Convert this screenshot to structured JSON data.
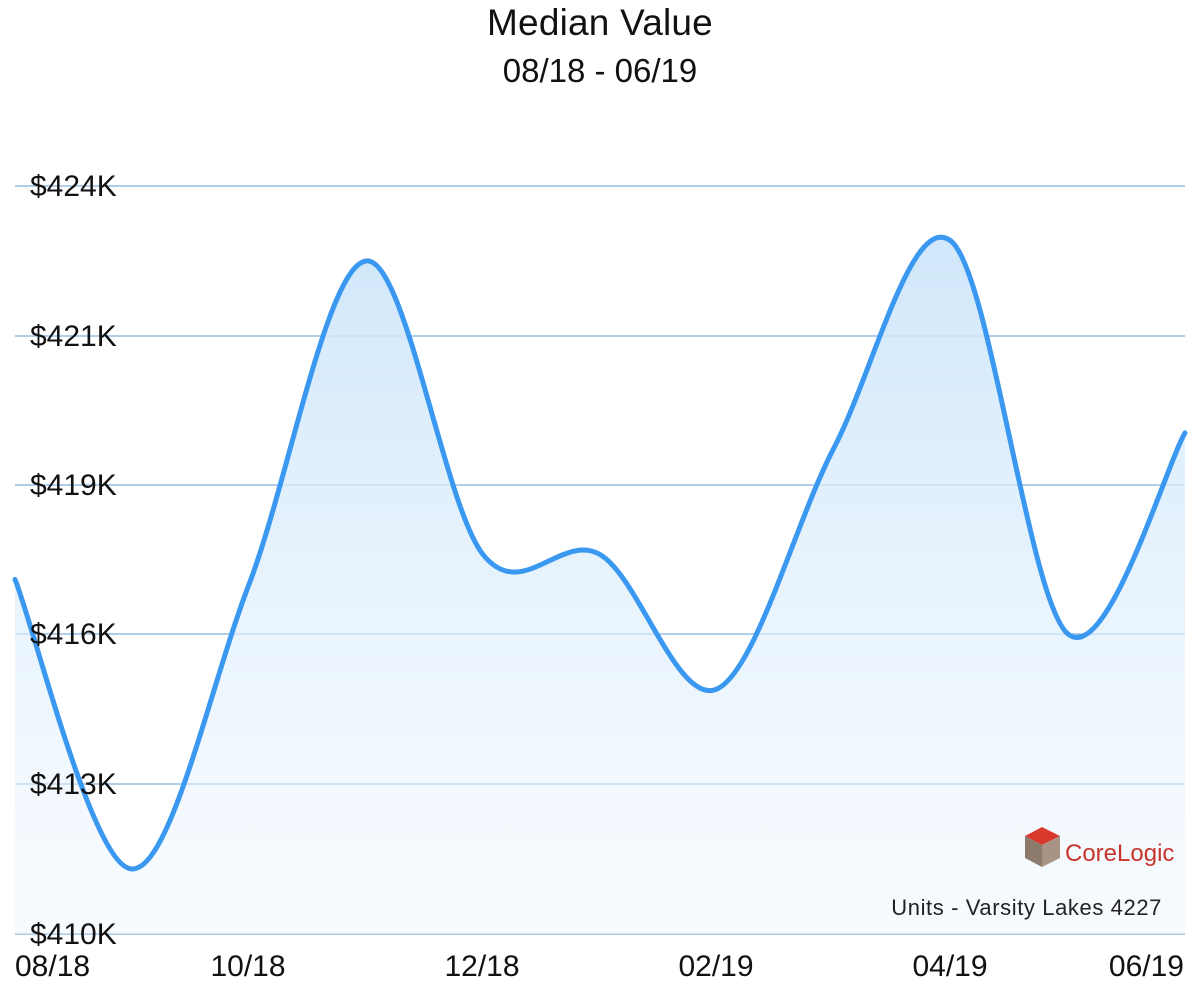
{
  "title": "Median Value",
  "subtitle": "08/18 - 06/19",
  "chart_data": {
    "type": "area",
    "title": "Median Value",
    "subtitle": "08/18 - 06/19",
    "xlabel": "",
    "ylabel": "",
    "x_ticks": [
      "08/18",
      "10/18",
      "12/18",
      "02/19",
      "04/19",
      "06/19"
    ],
    "y_ticks": [
      "$410K",
      "$413K",
      "$416K",
      "$419K",
      "$421K",
      "$424K"
    ],
    "y_tick_values": [
      410,
      413,
      416,
      419,
      421,
      424
    ],
    "ylim": [
      410,
      424
    ],
    "series": [
      {
        "name": "Median Value",
        "points": [
          {
            "x": 0.0,
            "y": 417.1
          },
          {
            "x": 1.0,
            "y": 411.3
          },
          {
            "x": 2.0,
            "y": 417.0
          },
          {
            "x": 3.0,
            "y": 422.5
          },
          {
            "x": 4.0,
            "y": 417.6
          },
          {
            "x": 5.0,
            "y": 417.6
          },
          {
            "x": 6.0,
            "y": 414.9
          },
          {
            "x": 7.0,
            "y": 419.5
          },
          {
            "x": 8.0,
            "y": 422.9
          },
          {
            "x": 9.0,
            "y": 416.0
          },
          {
            "x": 10.0,
            "y": 419.7
          }
        ]
      }
    ],
    "grid": true,
    "line_color": "#3a98f0",
    "fill_color": "#cfe6fb"
  },
  "brand": "CoreLogic",
  "caption": "Units - Varsity Lakes 4227"
}
